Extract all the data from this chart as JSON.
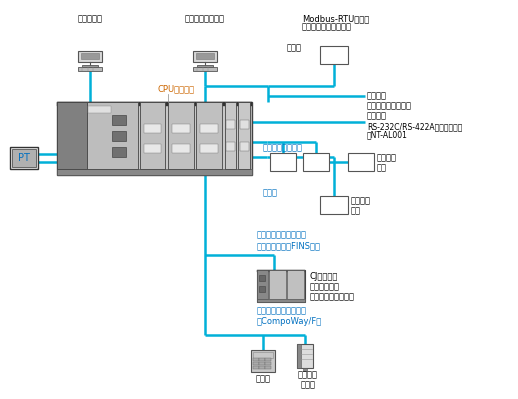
{
  "bg_color": "#ffffff",
  "line_color": "#00b0d8",
  "line_width": 1.8,
  "text_color": "#000000",
  "label_color_cpu": "#cc6600",
  "label_color_serial": "#0070c0",
  "labels": {
    "tool": "周辺ツール",
    "pc": "上位パソコンなど",
    "modbus_title": "Modbus-RTUマスタ",
    "modbus_sub": "（上位パソコンなど）",
    "matawa": "または",
    "pt": "PT",
    "cpu": "CPUユニット",
    "serial_comm": "シリアル\nコミュニケーション\nユニット",
    "rs232": "RS-232C/RS-422A変換ユニット",
    "rs232_sub": "形NT-AL001",
    "protocol": "プロトコルマクロ",
    "general1": "汎用外部\n機器",
    "musha": "無手順",
    "general2": "汎用外部\n機器",
    "serial_fins": "シリアルゲートウェイ\n（上位リンク（FINS））",
    "cj_series": "CJシリーズ\nコントローラ\n（上位リンク子局）",
    "serial_compoway": "シリアルゲートウェイ\n（CompoWay/F）",
    "temperature": "温調器",
    "smart": "スマート\nセンサ"
  }
}
